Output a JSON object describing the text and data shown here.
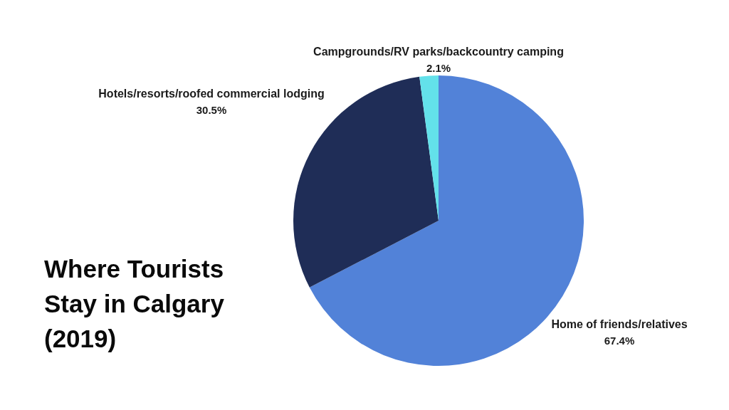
{
  "chart_data": {
    "type": "pie",
    "title": "Where Tourists Stay in Calgary (2019)",
    "categories": [
      "Home of friends/relatives",
      "Hotels/resorts/roofed commercial lodging",
      "Campgrounds/RV parks/backcountry camping"
    ],
    "values": [
      67.4,
      30.5,
      2.1
    ],
    "colors": [
      "#5282d8",
      "#1f2d57",
      "#63e1ea"
    ],
    "value_labels": [
      "67.4%",
      "30.5%",
      "2.1%"
    ]
  }
}
